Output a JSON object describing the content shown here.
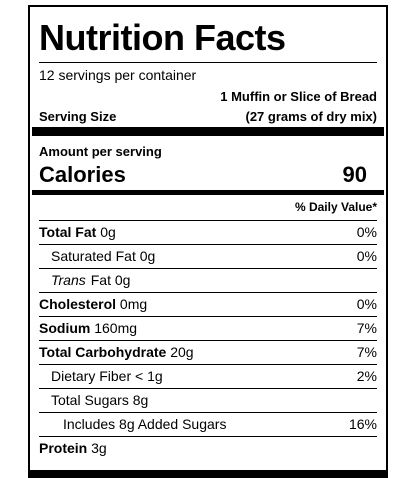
{
  "title": "Nutrition Facts",
  "servings_per_container": "12 servings per container",
  "serving_size": {
    "label": "Serving Size",
    "line1": "1 Muffin or Slice of Bread",
    "line2": "(27 grams of dry mix)"
  },
  "amount_per_serving": "Amount per serving",
  "calories": {
    "label": "Calories",
    "value": "90"
  },
  "daily_value_header": "% Daily Value*",
  "nutrients": [
    {
      "name": "Total Fat",
      "amount": "0g",
      "dv": "0%"
    },
    {
      "name": "Saturated Fat",
      "amount": "0g",
      "dv": "0%"
    },
    {
      "name": "Trans",
      "name_suffix": "Fat",
      "amount": "0g",
      "dv": ""
    },
    {
      "name": "Cholesterol",
      "amount": "0mg",
      "dv": "0%"
    },
    {
      "name": "Sodium",
      "amount": "160mg",
      "dv": "7%"
    },
    {
      "name": "Total Carbohydrate",
      "amount": "20g",
      "dv": "7%"
    },
    {
      "name": "Dietary Fiber",
      "amount": "< 1g",
      "dv": "2%"
    },
    {
      "name": "Total Sugars",
      "amount": "8g",
      "dv": ""
    },
    {
      "name": "Includes 8g Added Sugars",
      "amount": "",
      "dv": "16%"
    },
    {
      "name": "Protein",
      "amount": "3g",
      "dv": ""
    }
  ]
}
